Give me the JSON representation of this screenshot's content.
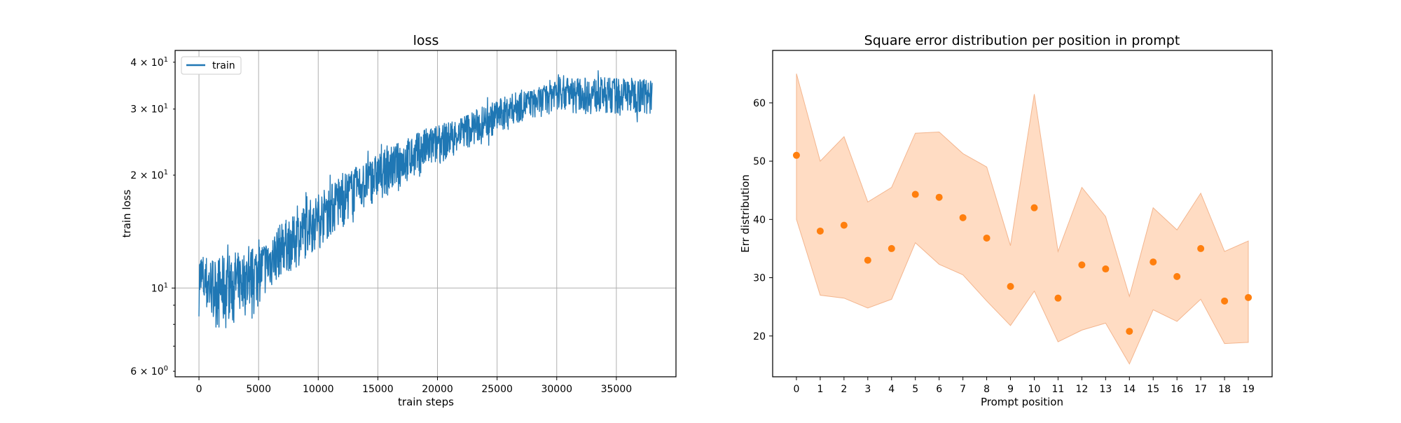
{
  "colors": {
    "train": "#1f77b4",
    "points": "#ff7f0e",
    "band_fill": "#ffdcc3",
    "band_edge": "#f3b58e"
  },
  "chart_data": [
    {
      "type": "line",
      "title": "loss",
      "xlabel": "train steps",
      "ylabel": "train loss",
      "yscale": "log",
      "grid": true,
      "legend": {
        "position": "top-left",
        "entries": [
          "train"
        ]
      },
      "xlim": [
        -2000,
        40000
      ],
      "ylim": [
        5.8,
        43
      ],
      "x_ticks": [
        0,
        5000,
        10000,
        15000,
        20000,
        25000,
        30000,
        35000
      ],
      "x_tick_labels": [
        "0",
        "5000",
        "10000",
        "15000",
        "20000",
        "25000",
        "30000",
        "35000"
      ],
      "y_major_ticks": [
        10
      ],
      "y_tick_labels": [
        {
          "value": 6,
          "mantissa": "6 × 10",
          "exp": "0"
        },
        {
          "value": 10,
          "mantissa": "10",
          "exp": "1"
        },
        {
          "value": 20,
          "mantissa": "2 × 10",
          "exp": "1"
        },
        {
          "value": 30,
          "mantissa": "3 × 10",
          "exp": "1"
        },
        {
          "value": 40,
          "mantissa": "4 × 10",
          "exp": "1"
        }
      ],
      "y_minor_ticks": [
        7,
        8,
        9
      ],
      "series": [
        {
          "name": "train",
          "envelope": {
            "x": [
              0,
              1000,
              2000,
              3000,
              4000,
              5000,
              6000,
              7000,
              8000,
              9000,
              10000,
              11000,
              12000,
              13000,
              14000,
              15000,
              16000,
              17000,
              18000,
              19000,
              20000,
              21000,
              22000,
              23000,
              24000,
              25000,
              26000,
              27000,
              28000,
              29000,
              30000,
              31000,
              32000,
              33000,
              34000,
              35000,
              36000,
              37000,
              38000
            ],
            "low": [
              7.5,
              7,
              6.5,
              7.2,
              7.5,
              8.2,
              9,
              10,
              10.2,
              11,
              11.5,
              12.5,
              13,
              14.5,
              15,
              16,
              16.5,
              17.5,
              18,
              19,
              20,
              21,
              22,
              22.5,
              23.5,
              24.5,
              25.5,
              26.5,
              27,
              27.5,
              28,
              28,
              27.5,
              27.5,
              27.5,
              27.5,
              27.5,
              27.5,
              27.5
            ],
            "high": [
              13.5,
              13,
              13.2,
              13.5,
              13.5,
              14,
              14.5,
              16,
              16.5,
              18,
              19,
              20,
              21.5,
              22,
              23,
              24,
              25,
              26,
              27,
              28,
              28.5,
              29,
              30,
              31,
              32,
              33,
              34,
              35,
              35,
              36,
              39,
              38,
              38,
              38,
              38,
              38,
              38,
              38,
              38
            ]
          }
        }
      ]
    },
    {
      "type": "scatter",
      "title": "Square error distribution per position in prompt",
      "xlabel": "Prompt position",
      "ylabel": "Err distribution",
      "grid": false,
      "xlim": [
        -1,
        20
      ],
      "ylim": [
        13,
        69
      ],
      "y_ticks": [
        20,
        30,
        40,
        50,
        60
      ],
      "x": [
        0,
        1,
        2,
        3,
        4,
        5,
        6,
        7,
        8,
        9,
        10,
        11,
        12,
        13,
        14,
        15,
        16,
        17,
        18,
        19
      ],
      "values": [
        51,
        38,
        39,
        33,
        35,
        44.3,
        43.8,
        40.3,
        36.8,
        28.5,
        42,
        26.5,
        32.2,
        31.5,
        20.8,
        32.7,
        30.2,
        35,
        26,
        26.6
      ],
      "band_upper": [
        65,
        50,
        54.2,
        43,
        45.5,
        54.8,
        55,
        51.3,
        49,
        35.5,
        61.5,
        34.5,
        45.5,
        40.5,
        26.8,
        42,
        38.2,
        44.5,
        34.5,
        36.3
      ],
      "band_lower": [
        40,
        27,
        26.5,
        24.8,
        26.3,
        36,
        32.3,
        30.5,
        26,
        21.8,
        27.7,
        19,
        21,
        22.2,
        15.2,
        24.5,
        22.5,
        26.3,
        18.7,
        18.9
      ]
    }
  ]
}
